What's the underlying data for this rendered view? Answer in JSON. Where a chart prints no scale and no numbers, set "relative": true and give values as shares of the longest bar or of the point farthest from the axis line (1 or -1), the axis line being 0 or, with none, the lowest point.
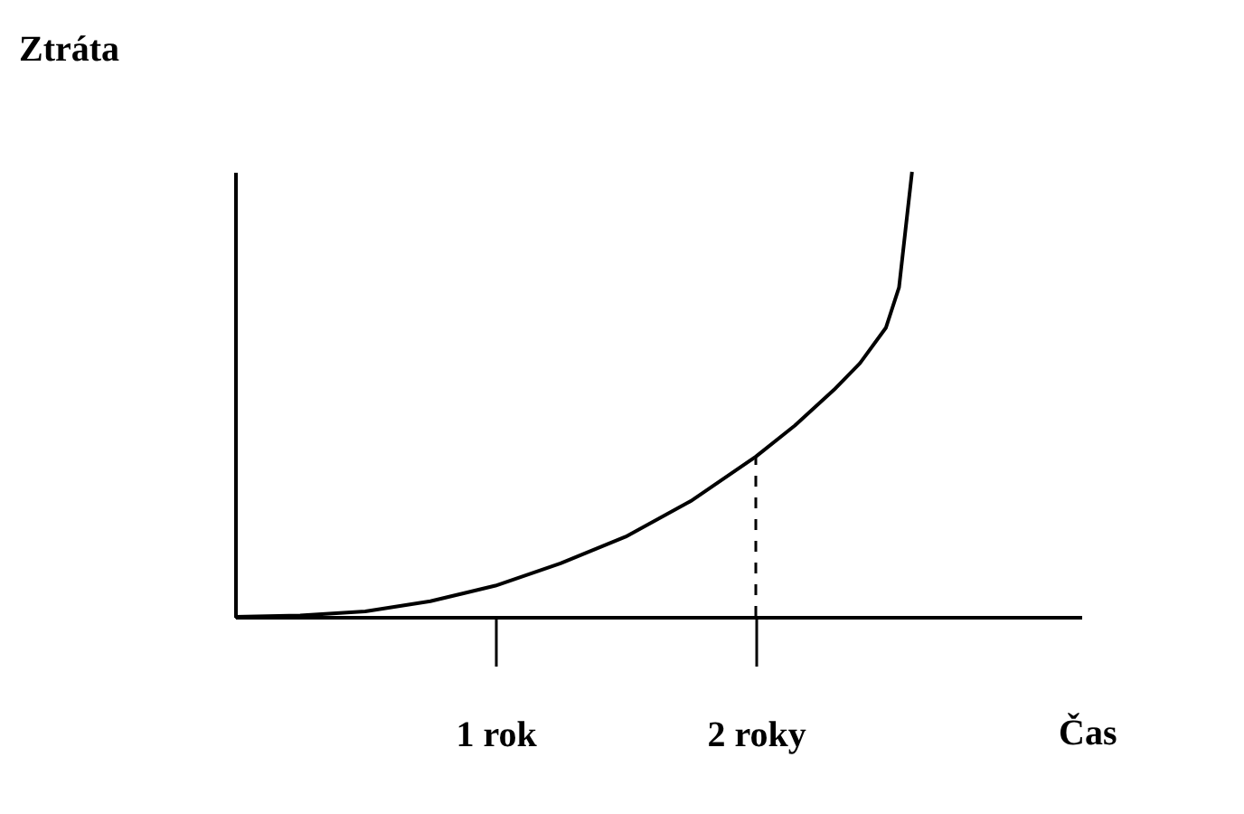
{
  "chart_data": {
    "type": "line",
    "relative": true,
    "xlabel": "Čas",
    "ylabel": "Ztráta",
    "x": [
      0,
      0.25,
      0.5,
      0.75,
      1,
      1.25,
      1.5,
      1.75,
      2,
      2.15,
      2.3,
      2.4,
      2.5,
      2.55,
      2.6
    ],
    "series": [
      {
        "color": "#000000",
        "values": [
          0,
          0.003,
          0.012,
          0.035,
          0.07,
          0.12,
          0.18,
          0.26,
          0.36,
          0.43,
          0.51,
          0.57,
          0.65,
          0.74,
          1
        ]
      }
    ],
    "xlim": [
      0,
      3.25
    ],
    "xticks": [
      {
        "value": 1,
        "label": "1 rok"
      },
      {
        "value": 2,
        "label": "2 roky"
      }
    ],
    "ref_lines": [
      {
        "axis": "x",
        "value": 2,
        "line_style": "dashed"
      }
    ],
    "grid": false,
    "marker": "none",
    "line_style": "solid"
  }
}
